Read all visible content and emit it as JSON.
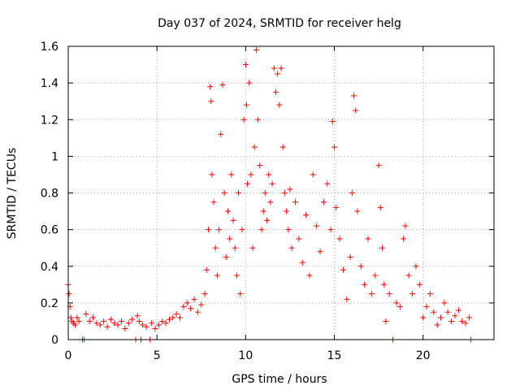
{
  "chart_data": {
    "type": "scatter",
    "title": "Day 037 of 2024, SRMTID for receiver helg",
    "xlabel": "GPS time / hours",
    "ylabel": "SRMTID / TECUs",
    "xlim": [
      0,
      24
    ],
    "ylim": [
      0,
      1.6
    ],
    "xticks": [
      0,
      5,
      10,
      15,
      20
    ],
    "xtick_labels": [
      "0",
      "5",
      "10",
      "15",
      "20"
    ],
    "yticks": [
      0,
      0.2,
      0.4,
      0.6,
      0.8,
      1.0,
      1.2,
      1.4,
      1.6
    ],
    "ytick_labels": [
      "0",
      "0.2",
      "0.4",
      "0.6",
      "0.8",
      "1",
      "1.2",
      "1.4",
      "1.6"
    ],
    "grid": true,
    "marker": "+",
    "color": "#ff0000",
    "series": [
      {
        "name": "SRMTID",
        "points": [
          [
            0.0,
            0.3
          ],
          [
            0.05,
            0.25
          ],
          [
            0.1,
            0.18
          ],
          [
            0.15,
            0.12
          ],
          [
            0.2,
            0.1
          ],
          [
            0.3,
            0.09
          ],
          [
            0.4,
            0.08
          ],
          [
            0.5,
            0.12
          ],
          [
            0.6,
            0.1
          ],
          [
            0.8,
            0.0
          ],
          [
            0.9,
            0.0
          ],
          [
            1.0,
            0.14
          ],
          [
            1.2,
            0.1
          ],
          [
            1.4,
            0.12
          ],
          [
            1.6,
            0.09
          ],
          [
            1.8,
            0.08
          ],
          [
            2.0,
            0.1
          ],
          [
            2.2,
            0.07
          ],
          [
            2.4,
            0.11
          ],
          [
            2.6,
            0.09
          ],
          [
            2.8,
            0.08
          ],
          [
            3.0,
            0.1
          ],
          [
            3.2,
            0.06
          ],
          [
            3.4,
            0.09
          ],
          [
            3.6,
            0.11
          ],
          [
            3.8,
            0.0
          ],
          [
            3.9,
            0.13
          ],
          [
            4.0,
            0.1
          ],
          [
            4.1,
            0.0
          ],
          [
            4.2,
            0.08
          ],
          [
            4.4,
            0.07
          ],
          [
            4.6,
            0.0
          ],
          [
            4.7,
            0.09
          ],
          [
            4.9,
            0.06
          ],
          [
            5.1,
            0.08
          ],
          [
            5.3,
            0.1
          ],
          [
            5.5,
            0.09
          ],
          [
            5.7,
            0.11
          ],
          [
            5.9,
            0.12
          ],
          [
            6.1,
            0.14
          ],
          [
            6.3,
            0.12
          ],
          [
            6.5,
            0.18
          ],
          [
            6.7,
            0.2
          ],
          [
            6.9,
            0.17
          ],
          [
            7.1,
            0.22
          ],
          [
            7.3,
            0.15
          ],
          [
            7.5,
            0.19
          ],
          [
            7.7,
            0.25
          ],
          [
            7.8,
            0.38
          ],
          [
            7.9,
            0.6
          ],
          [
            8.0,
            1.38
          ],
          [
            8.05,
            1.3
          ],
          [
            8.1,
            0.9
          ],
          [
            8.2,
            0.75
          ],
          [
            8.3,
            0.5
          ],
          [
            8.4,
            0.35
          ],
          [
            8.5,
            0.6
          ],
          [
            8.6,
            1.12
          ],
          [
            8.7,
            1.39
          ],
          [
            8.8,
            0.8
          ],
          [
            8.9,
            0.45
          ],
          [
            9.0,
            0.7
          ],
          [
            9.1,
            0.55
          ],
          [
            9.2,
            0.9
          ],
          [
            9.3,
            0.65
          ],
          [
            9.4,
            0.5
          ],
          [
            9.5,
            0.35
          ],
          [
            9.6,
            0.8
          ],
          [
            9.7,
            0.25
          ],
          [
            9.8,
            0.6
          ],
          [
            9.9,
            1.2
          ],
          [
            10.0,
            1.5
          ],
          [
            10.05,
            1.28
          ],
          [
            10.1,
            0.85
          ],
          [
            10.2,
            1.4
          ],
          [
            10.3,
            0.9
          ],
          [
            10.4,
            0.5
          ],
          [
            10.5,
            1.05
          ],
          [
            10.6,
            1.58
          ],
          [
            10.7,
            1.2
          ],
          [
            10.8,
            0.95
          ],
          [
            10.9,
            0.6
          ],
          [
            11.0,
            0.7
          ],
          [
            11.1,
            0.8
          ],
          [
            11.2,
            0.65
          ],
          [
            11.3,
            0.9
          ],
          [
            11.4,
            0.75
          ],
          [
            11.5,
            0.85
          ],
          [
            11.6,
            1.48
          ],
          [
            11.7,
            1.35
          ],
          [
            11.8,
            1.45
          ],
          [
            11.9,
            1.28
          ],
          [
            12.0,
            1.48
          ],
          [
            12.1,
            1.05
          ],
          [
            12.2,
            0.8
          ],
          [
            12.3,
            0.7
          ],
          [
            12.4,
            0.6
          ],
          [
            12.5,
            0.82
          ],
          [
            12.6,
            0.5
          ],
          [
            12.8,
            0.75
          ],
          [
            13.0,
            0.55
          ],
          [
            13.2,
            0.42
          ],
          [
            13.4,
            0.68
          ],
          [
            13.6,
            0.35
          ],
          [
            13.8,
            0.9
          ],
          [
            14.0,
            0.62
          ],
          [
            14.2,
            0.48
          ],
          [
            14.4,
            0.75
          ],
          [
            14.6,
            0.85
          ],
          [
            14.8,
            0.6
          ],
          [
            14.9,
            1.19
          ],
          [
            15.0,
            1.05
          ],
          [
            15.1,
            0.72
          ],
          [
            15.3,
            0.55
          ],
          [
            15.5,
            0.38
          ],
          [
            15.7,
            0.22
          ],
          [
            15.9,
            0.45
          ],
          [
            16.0,
            0.8
          ],
          [
            16.1,
            1.33
          ],
          [
            16.2,
            1.25
          ],
          [
            16.3,
            0.7
          ],
          [
            16.5,
            0.4
          ],
          [
            16.7,
            0.3
          ],
          [
            16.9,
            0.55
          ],
          [
            17.1,
            0.25
          ],
          [
            17.3,
            0.35
          ],
          [
            17.5,
            0.95
          ],
          [
            17.6,
            0.72
          ],
          [
            17.7,
            0.5
          ],
          [
            17.8,
            0.3
          ],
          [
            17.9,
            0.1
          ],
          [
            18.1,
            0.25
          ],
          [
            18.3,
            0.0
          ],
          [
            18.5,
            0.2
          ],
          [
            18.7,
            0.18
          ],
          [
            18.9,
            0.55
          ],
          [
            19.0,
            0.62
          ],
          [
            19.2,
            0.35
          ],
          [
            19.4,
            0.25
          ],
          [
            19.6,
            0.4
          ],
          [
            19.8,
            0.3
          ],
          [
            20.0,
            0.12
          ],
          [
            20.2,
            0.18
          ],
          [
            20.4,
            0.25
          ],
          [
            20.6,
            0.15
          ],
          [
            20.8,
            0.08
          ],
          [
            21.0,
            0.12
          ],
          [
            21.2,
            0.2
          ],
          [
            21.4,
            0.15
          ],
          [
            21.6,
            0.1
          ],
          [
            21.8,
            0.13
          ],
          [
            22.0,
            0.16
          ],
          [
            22.2,
            0.1
          ],
          [
            22.4,
            0.09
          ],
          [
            22.6,
            0.12
          ],
          [
            22.7,
            0.0
          ]
        ]
      }
    ]
  }
}
